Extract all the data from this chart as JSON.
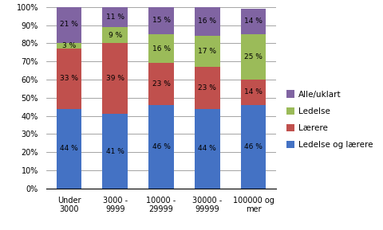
{
  "categories": [
    "Under\n3000",
    "3000 -\n9999",
    "10000 -\n29999",
    "30000 -\n99999",
    "100000 og\nmer"
  ],
  "series": {
    "Ledelse og lærere": [
      44,
      41,
      46,
      44,
      46
    ],
    "Lærere": [
      33,
      39,
      23,
      23,
      14
    ],
    "Ledelse": [
      3,
      9,
      16,
      17,
      25
    ],
    "Alle/uklart": [
      21,
      11,
      15,
      16,
      14
    ]
  },
  "colors": {
    "Ledelse og lærere": "#4472C4",
    "Lærere": "#C0504D",
    "Ledelse": "#9BBB59",
    "Alle/uklart": "#8064A2"
  },
  "legend_order": [
    "Alle/uklart",
    "Ledelse",
    "Lærere",
    "Ledelse og lærere"
  ],
  "ylim": [
    0,
    100
  ],
  "yticks": [
    0,
    10,
    20,
    30,
    40,
    50,
    60,
    70,
    80,
    90,
    100
  ],
  "ytick_labels": [
    "0%",
    "10%",
    "20%",
    "30%",
    "40%",
    "50%",
    "60%",
    "70%",
    "80%",
    "90%",
    "100%"
  ],
  "bar_width": 0.55,
  "label_fontsize": 6.5,
  "legend_fontsize": 7.5,
  "tick_fontsize": 7,
  "background_color": "#FFFFFF"
}
